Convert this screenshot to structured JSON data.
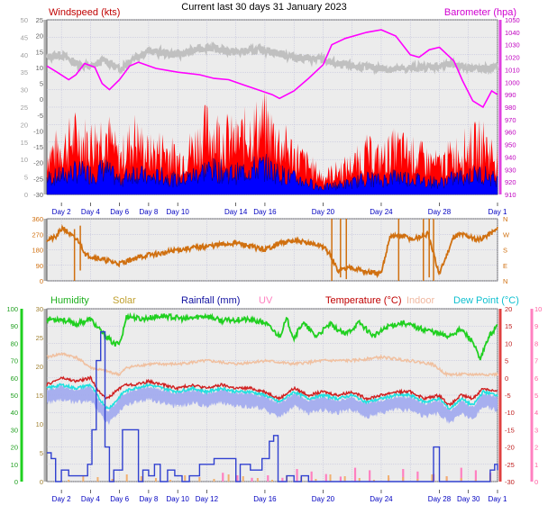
{
  "title": "Current last 30 days 31 January 2023",
  "colors": {
    "wind": "#ff0000",
    "gust_low": "#0000ff",
    "gust_base": "#000080",
    "pressure": "#ff00ff",
    "gray_series": "#c0c0c0",
    "direction": "#d07010",
    "humidity": "#20d020",
    "solar": "#f0b070",
    "rain": "#3040d0",
    "uv": "#ff80c0",
    "temperature": "#d02020",
    "indoor": "#f0c0a0",
    "dewpoint": "#20e0e0",
    "dewband": "#a0a8f0",
    "panel_bg": "#ececec",
    "grid": "#b8b8d8"
  },
  "chart_data": [
    {
      "type": "line",
      "id": "wind",
      "legend": {
        "left": "Windspeed (kts)",
        "right": "Barometer (hpa)"
      },
      "left_axis": {
        "ticks": [
          "50",
          "45",
          "40",
          "35",
          "30",
          "25",
          "20",
          "15",
          "10",
          "5",
          "0"
        ],
        "range": [
          0,
          50
        ]
      },
      "left_secondary_axis": {
        "ticks": [
          "25",
          "20",
          "15",
          "10",
          "5",
          "0",
          "-5",
          "-10",
          "-15",
          "-20",
          "-25",
          "-30"
        ],
        "range": [
          -30,
          25
        ]
      },
      "right_axis": {
        "ticks": [
          "1050",
          "1040",
          "1030",
          "1020",
          "1010",
          "1000",
          "990",
          "980",
          "970",
          "960",
          "950",
          "940",
          "930",
          "920",
          "910"
        ],
        "range": [
          910,
          1050
        ]
      },
      "x_ticks": [
        "Day 2",
        "Day 4",
        "Day 6",
        "Day 8",
        "Day 10",
        "Day 14",
        "Day 16",
        "Day 20",
        "Day 24",
        "Day 28",
        "Day 1"
      ],
      "x_tick_days": [
        2,
        4,
        6,
        8,
        10,
        14,
        16,
        20,
        24,
        28,
        32
      ],
      "series": {
        "pressure_hpa": [
          [
            1,
            1013
          ],
          [
            1.7,
            1008
          ],
          [
            2.5,
            1002
          ],
          [
            3,
            1006
          ],
          [
            3.6,
            1015
          ],
          [
            4.3,
            1012
          ],
          [
            4.8,
            999
          ],
          [
            5.3,
            994
          ],
          [
            6,
            1002
          ],
          [
            6.7,
            1013
          ],
          [
            7.3,
            1016
          ],
          [
            8.5,
            1011
          ],
          [
            10,
            1008
          ],
          [
            11.5,
            1006
          ],
          [
            12.5,
            1003
          ],
          [
            13.5,
            1002
          ],
          [
            14.5,
            998
          ],
          [
            15.5,
            994
          ],
          [
            16.5,
            990
          ],
          [
            17,
            987
          ],
          [
            18,
            993
          ],
          [
            19,
            1003
          ],
          [
            20,
            1014
          ],
          [
            20.6,
            1030
          ],
          [
            21.5,
            1035
          ],
          [
            23,
            1040
          ],
          [
            24,
            1042
          ],
          [
            25,
            1037
          ],
          [
            26,
            1022
          ],
          [
            26.6,
            1020
          ],
          [
            27.3,
            1026
          ],
          [
            28,
            1028
          ],
          [
            29,
            1017
          ],
          [
            29.6,
            1001
          ],
          [
            30.3,
            985
          ],
          [
            31,
            980
          ],
          [
            31.6,
            993
          ],
          [
            32,
            990
          ]
        ]
      }
    },
    {
      "type": "line",
      "id": "direction",
      "left_axis": {
        "ticks": [
          "360",
          "270",
          "180",
          "90",
          "0"
        ],
        "range": [
          0,
          360
        ]
      },
      "right_axis": {
        "ticks": [
          "N",
          "W",
          "S",
          "E",
          "N"
        ]
      },
      "x_tick_days": [
        2,
        4,
        6,
        8,
        10,
        14,
        16,
        20,
        24,
        28,
        32
      ],
      "series": {
        "direction_deg": [
          [
            1,
            240
          ],
          [
            1.6,
            250
          ],
          [
            2.1,
            310
          ],
          [
            2.7,
            260
          ],
          [
            3.2,
            230
          ],
          [
            3.7,
            150
          ],
          [
            4.2,
            140
          ],
          [
            5,
            120
          ],
          [
            6,
            100
          ],
          [
            7,
            130
          ],
          [
            8,
            150
          ],
          [
            9,
            160
          ],
          [
            10,
            180
          ],
          [
            11,
            190
          ],
          [
            12,
            200
          ],
          [
            13,
            210
          ],
          [
            14,
            220
          ],
          [
            15,
            200
          ],
          [
            16,
            180
          ],
          [
            17,
            220
          ],
          [
            18,
            230
          ],
          [
            19,
            220
          ],
          [
            20,
            200
          ],
          [
            20.5,
            150
          ],
          [
            21,
            60
          ],
          [
            22,
            80
          ],
          [
            23,
            50
          ],
          [
            24,
            40
          ],
          [
            24.6,
            260
          ],
          [
            25.5,
            260
          ],
          [
            26.2,
            240
          ],
          [
            26.8,
            260
          ],
          [
            27.2,
            270
          ],
          [
            28,
            40
          ],
          [
            29,
            260
          ],
          [
            29.5,
            270
          ],
          [
            30,
            260
          ],
          [
            30.5,
            240
          ],
          [
            31,
            250
          ],
          [
            32,
            300
          ]
        ]
      }
    },
    {
      "type": "line",
      "id": "weather",
      "legend": [
        "Humidity",
        "Solar",
        "Rainfall (mm)",
        "UV",
        "Temperature (°C)",
        "Indoor",
        "Dew Point (°C)"
      ],
      "left_axis": {
        "ticks": [
          "100",
          "90",
          "80",
          "70",
          "60",
          "50",
          "40",
          "30",
          "20",
          "10",
          "0"
        ],
        "range": [
          0,
          100
        ]
      },
      "left_secondary_axis": {
        "ticks": [
          "30",
          "25",
          "20",
          "15",
          "10",
          "5",
          "0"
        ],
        "range": [
          0,
          30
        ]
      },
      "right_axis": {
        "ticks": [
          "20",
          "15",
          "10",
          "5",
          "0",
          "-5",
          "-10",
          "-15",
          "-20",
          "-25",
          "-30"
        ],
        "range": [
          -30,
          20
        ]
      },
      "right_secondary_axis": {
        "ticks": [
          "10",
          "9",
          "8",
          "7",
          "6",
          "5",
          "4",
          "3",
          "2",
          "1",
          "0"
        ],
        "range": [
          0,
          10
        ]
      },
      "x_ticks": [
        "Day 2",
        "Day 4",
        "Day 6",
        "Day 8",
        "Day 10",
        "Day 12",
        "Day 16",
        "Day 20",
        "Day 24",
        "Day 28",
        "Day 30",
        "Day 1"
      ],
      "x_tick_days": [
        2,
        4,
        6,
        8,
        10,
        12,
        16,
        20,
        24,
        28,
        30,
        32
      ],
      "series": {
        "humidity_pct": [
          [
            1,
            94
          ],
          [
            2,
            94
          ],
          [
            3,
            91
          ],
          [
            4,
            94
          ],
          [
            4.6,
            88
          ],
          [
            5.2,
            83
          ],
          [
            5.7,
            79
          ],
          [
            6.1,
            82
          ],
          [
            6.5,
            96
          ],
          [
            7.5,
            94
          ],
          [
            9,
            96
          ],
          [
            10.5,
            94
          ],
          [
            12,
            96
          ],
          [
            13,
            93
          ],
          [
            14.5,
            94
          ],
          [
            16,
            92
          ],
          [
            17,
            84
          ],
          [
            17.5,
            94
          ],
          [
            18,
            83
          ],
          [
            18.6,
            92
          ],
          [
            19.5,
            84
          ],
          [
            20.5,
            91
          ],
          [
            21.5,
            85
          ],
          [
            22.5,
            92
          ],
          [
            23.5,
            84
          ],
          [
            24.5,
            90
          ],
          [
            25.5,
            92
          ],
          [
            26.5,
            89
          ],
          [
            27.5,
            87
          ],
          [
            28.5,
            84
          ],
          [
            29.5,
            88
          ],
          [
            30.3,
            81
          ],
          [
            30.8,
            70
          ],
          [
            31.4,
            84
          ],
          [
            32,
            90
          ]
        ],
        "temperature_c": [
          [
            1,
            -2
          ],
          [
            2,
            0
          ],
          [
            3,
            -1
          ],
          [
            4,
            0
          ],
          [
            4.6,
            -4
          ],
          [
            5.2,
            -6
          ],
          [
            5.7,
            -4
          ],
          [
            6.3,
            -2
          ],
          [
            7,
            -2
          ],
          [
            8,
            -1
          ],
          [
            9,
            -2
          ],
          [
            10,
            -3
          ],
          [
            11,
            -2
          ],
          [
            12,
            -3
          ],
          [
            13,
            -2
          ],
          [
            14,
            -3
          ],
          [
            15,
            -3
          ],
          [
            16,
            -4
          ],
          [
            17,
            -6
          ],
          [
            18,
            -3
          ],
          [
            19,
            -5
          ],
          [
            20,
            -4
          ],
          [
            21,
            -5
          ],
          [
            22,
            -4
          ],
          [
            23,
            -6
          ],
          [
            24,
            -5
          ],
          [
            25,
            -4
          ],
          [
            26,
            -4
          ],
          [
            27,
            -6
          ],
          [
            28,
            -5
          ],
          [
            28.7,
            -8
          ],
          [
            29.5,
            -5
          ],
          [
            30.3,
            -6
          ],
          [
            31,
            -3
          ],
          [
            32,
            -4
          ]
        ],
        "dewpoint_c": [
          [
            1,
            -3
          ],
          [
            2,
            -2
          ],
          [
            3,
            -3
          ],
          [
            4,
            -2
          ],
          [
            4.6,
            -6
          ],
          [
            5.2,
            -9
          ],
          [
            5.7,
            -7
          ],
          [
            6.3,
            -4
          ],
          [
            7,
            -3
          ],
          [
            8,
            -2
          ],
          [
            9,
            -3
          ],
          [
            10,
            -4
          ],
          [
            11,
            -3
          ],
          [
            12,
            -4
          ],
          [
            13,
            -3
          ],
          [
            14,
            -4
          ],
          [
            15,
            -4
          ],
          [
            16,
            -5
          ],
          [
            17,
            -7
          ],
          [
            18,
            -4
          ],
          [
            19,
            -6
          ],
          [
            20,
            -5
          ],
          [
            21,
            -6
          ],
          [
            22,
            -5
          ],
          [
            23,
            -7
          ],
          [
            24,
            -6
          ],
          [
            25,
            -5
          ],
          [
            26,
            -5
          ],
          [
            27,
            -7
          ],
          [
            28,
            -6
          ],
          [
            28.7,
            -9
          ],
          [
            29.5,
            -6
          ],
          [
            30.3,
            -8
          ],
          [
            31,
            -4
          ],
          [
            32,
            -5
          ]
        ],
        "indoor_c": [
          [
            1,
            6
          ],
          [
            2,
            7
          ],
          [
            3,
            6
          ],
          [
            4,
            3
          ],
          [
            5,
            2
          ],
          [
            6,
            1
          ],
          [
            6.5,
            3
          ],
          [
            8,
            4
          ],
          [
            10,
            4
          ],
          [
            12,
            5
          ],
          [
            14,
            4
          ],
          [
            16,
            5
          ],
          [
            18,
            4
          ],
          [
            20,
            5
          ],
          [
            22,
            5
          ],
          [
            24,
            6
          ],
          [
            26,
            5
          ],
          [
            27.5,
            4
          ],
          [
            28.5,
            1
          ],
          [
            29.5,
            1
          ],
          [
            30.3,
            1
          ],
          [
            31,
            1
          ],
          [
            32,
            1
          ]
        ],
        "rain_mm": [
          [
            1,
            5
          ],
          [
            1.3,
            4
          ],
          [
            1.6,
            0
          ],
          [
            2,
            2
          ],
          [
            2.5,
            1
          ],
          [
            3,
            1
          ],
          [
            3.5,
            1
          ],
          [
            3.8,
            3
          ],
          [
            4.1,
            9
          ],
          [
            4.4,
            21
          ],
          [
            4.7,
            26
          ],
          [
            5,
            6
          ],
          [
            5.3,
            0
          ],
          [
            5.6,
            2
          ],
          [
            6,
            2
          ],
          [
            6.2,
            9
          ],
          [
            7,
            9
          ],
          [
            7.3,
            0
          ],
          [
            7.6,
            2
          ],
          [
            8,
            1
          ],
          [
            8.4,
            3
          ],
          [
            8.8,
            0
          ],
          [
            9.3,
            2
          ],
          [
            9.8,
            1
          ],
          [
            10.3,
            0
          ],
          [
            10.8,
            1
          ],
          [
            11.5,
            3
          ],
          [
            12,
            3
          ],
          [
            12.5,
            4
          ],
          [
            13,
            4
          ],
          [
            14,
            0
          ],
          [
            14.3,
            3
          ],
          [
            15,
            2
          ],
          [
            15.8,
            4
          ],
          [
            16.3,
            7
          ],
          [
            16.6,
            8
          ],
          [
            16.9,
            0
          ],
          [
            17.5,
            1
          ],
          [
            18,
            0
          ],
          [
            18.5,
            1
          ],
          [
            19,
            0
          ],
          [
            26,
            0
          ],
          [
            27,
            0
          ],
          [
            27.6,
            6
          ],
          [
            28,
            0
          ],
          [
            31,
            0
          ],
          [
            31.5,
            2
          ],
          [
            31.8,
            3
          ],
          [
            32,
            2
          ]
        ]
      }
    }
  ]
}
